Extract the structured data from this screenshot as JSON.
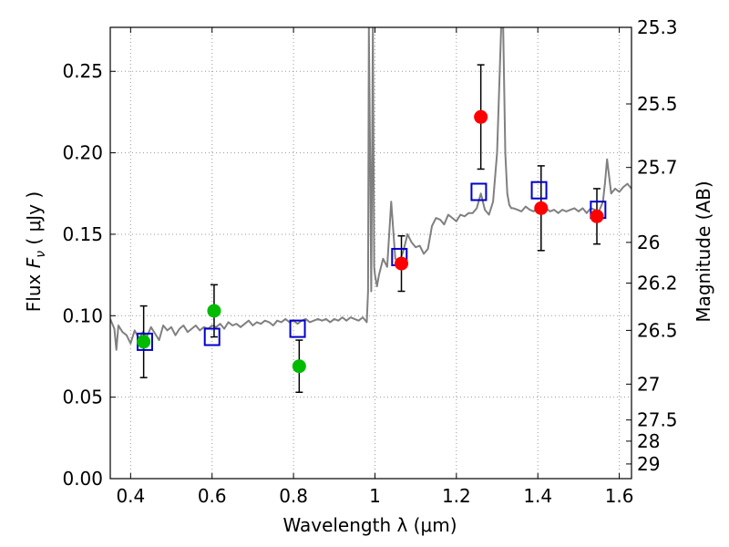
{
  "chart_data": {
    "type": "scatter",
    "xlabel": "Wavelength  λ (μm)",
    "ylabel": "Flux  F_ν  ( μJy )",
    "ylabel_parts": {
      "prefix": "Flux  ",
      "symbol": "F",
      "subscript": "ν",
      "suffix": "  ( μJy )"
    },
    "y2label": "Magnitude (AB)",
    "xlim": [
      0.35,
      1.63
    ],
    "ylim": [
      0.0,
      0.277
    ],
    "grid": true,
    "x_ticks": [
      0.4,
      0.6,
      0.8,
      1.0,
      1.2,
      1.4,
      1.6
    ],
    "x_tick_labels": [
      "0.4",
      "0.6",
      "0.8",
      "1",
      "1.2",
      "1.4",
      "1.6"
    ],
    "y_ticks": [
      0.0,
      0.05,
      0.1,
      0.15,
      0.2,
      0.25
    ],
    "y_tick_labels": [
      "0.00",
      "0.05",
      "0.10",
      "0.15",
      "0.20",
      "0.25"
    ],
    "y2_ticks": [
      {
        "label": "25.3",
        "flux": 0.277
      },
      {
        "label": "25.5",
        "flux": 0.23
      },
      {
        "label": "25.7",
        "flux": 0.191
      },
      {
        "label": "26",
        "flux": 0.145
      },
      {
        "label": "26.2",
        "flux": 0.12
      },
      {
        "label": "26.5",
        "flux": 0.091
      },
      {
        "label": "27",
        "flux": 0.058
      },
      {
        "label": "27.5",
        "flux": 0.036
      },
      {
        "label": "28",
        "flux": 0.023
      },
      {
        "label": "29",
        "flux": 0.009
      }
    ],
    "colors": {
      "spectrum": "#808080",
      "green_points": "#00bb00",
      "red_points": "#ff0000",
      "model_squares": "#0000cc",
      "errorbar": "#000000",
      "grid": "#999999"
    },
    "spectrum": {
      "x": [
        0.35,
        0.36,
        0.365,
        0.37,
        0.38,
        0.39,
        0.4,
        0.41,
        0.42,
        0.43,
        0.44,
        0.45,
        0.46,
        0.47,
        0.48,
        0.49,
        0.5,
        0.51,
        0.52,
        0.53,
        0.54,
        0.55,
        0.56,
        0.57,
        0.58,
        0.59,
        0.6,
        0.61,
        0.62,
        0.63,
        0.64,
        0.65,
        0.66,
        0.67,
        0.68,
        0.69,
        0.7,
        0.71,
        0.72,
        0.73,
        0.74,
        0.75,
        0.76,
        0.77,
        0.78,
        0.79,
        0.8,
        0.81,
        0.82,
        0.83,
        0.84,
        0.85,
        0.86,
        0.87,
        0.88,
        0.89,
        0.9,
        0.91,
        0.92,
        0.93,
        0.94,
        0.95,
        0.96,
        0.97,
        0.98,
        0.983,
        0.985,
        0.988,
        0.991,
        0.995,
        0.998,
        1.0,
        1.005,
        1.01,
        1.02,
        1.03,
        1.04,
        1.05,
        1.06,
        1.07,
        1.08,
        1.09,
        1.1,
        1.11,
        1.12,
        1.13,
        1.14,
        1.15,
        1.16,
        1.17,
        1.18,
        1.19,
        1.2,
        1.21,
        1.22,
        1.23,
        1.24,
        1.25,
        1.26,
        1.27,
        1.28,
        1.29,
        1.3,
        1.31,
        1.315,
        1.32,
        1.325,
        1.33,
        1.335,
        1.34,
        1.35,
        1.36,
        1.37,
        1.38,
        1.39,
        1.4,
        1.41,
        1.42,
        1.43,
        1.44,
        1.45,
        1.46,
        1.47,
        1.48,
        1.49,
        1.5,
        1.51,
        1.52,
        1.53,
        1.54,
        1.55,
        1.56,
        1.565,
        1.57,
        1.58,
        1.59,
        1.6,
        1.61,
        1.62,
        1.63
      ],
      "y": [
        0.098,
        0.092,
        0.079,
        0.094,
        0.09,
        0.088,
        0.083,
        0.091,
        0.086,
        0.09,
        0.087,
        0.093,
        0.089,
        0.085,
        0.094,
        0.091,
        0.093,
        0.088,
        0.092,
        0.094,
        0.09,
        0.092,
        0.094,
        0.091,
        0.093,
        0.092,
        0.094,
        0.093,
        0.095,
        0.092,
        0.096,
        0.094,
        0.095,
        0.093,
        0.095,
        0.097,
        0.094,
        0.096,
        0.095,
        0.097,
        0.096,
        0.094,
        0.097,
        0.096,
        0.098,
        0.096,
        0.097,
        0.095,
        0.097,
        0.098,
        0.096,
        0.097,
        0.098,
        0.097,
        0.098,
        0.096,
        0.098,
        0.097,
        0.099,
        0.097,
        0.099,
        0.098,
        0.097,
        0.099,
        0.096,
        0.115,
        0.277,
        0.2,
        0.115,
        0.277,
        0.13,
        0.125,
        0.118,
        0.125,
        0.135,
        0.13,
        0.17,
        0.135,
        0.133,
        0.14,
        0.15,
        0.145,
        0.142,
        0.143,
        0.138,
        0.141,
        0.155,
        0.16,
        0.159,
        0.156,
        0.162,
        0.16,
        0.158,
        0.162,
        0.161,
        0.163,
        0.163,
        0.166,
        0.175,
        0.165,
        0.162,
        0.17,
        0.2,
        0.277,
        0.277,
        0.2,
        0.175,
        0.168,
        0.166,
        0.166,
        0.165,
        0.164,
        0.167,
        0.165,
        0.164,
        0.167,
        0.165,
        0.166,
        0.164,
        0.165,
        0.163,
        0.165,
        0.164,
        0.165,
        0.166,
        0.164,
        0.166,
        0.163,
        0.166,
        0.165,
        0.164,
        0.17,
        0.182,
        0.196,
        0.175,
        0.178,
        0.176,
        0.179,
        0.181,
        0.178
      ]
    },
    "green_points": [
      {
        "x": 0.432,
        "y": 0.084,
        "err": 0.022
      },
      {
        "x": 0.605,
        "y": 0.103,
        "err": 0.016
      },
      {
        "x": 0.814,
        "y": 0.069,
        "err": 0.016
      }
    ],
    "red_points": [
      {
        "x": 1.065,
        "y": 0.132,
        "err": 0.017
      },
      {
        "x": 1.26,
        "y": 0.222,
        "err": 0.032
      },
      {
        "x": 1.408,
        "y": 0.166,
        "err": 0.026
      },
      {
        "x": 1.545,
        "y": 0.161,
        "err": 0.017
      }
    ],
    "model_squares": [
      {
        "x": 0.435,
        "y": 0.084
      },
      {
        "x": 0.6,
        "y": 0.087
      },
      {
        "x": 0.81,
        "y": 0.092
      },
      {
        "x": 1.06,
        "y": 0.136
      },
      {
        "x": 1.255,
        "y": 0.176
      },
      {
        "x": 1.403,
        "y": 0.177
      },
      {
        "x": 1.548,
        "y": 0.165
      }
    ]
  }
}
